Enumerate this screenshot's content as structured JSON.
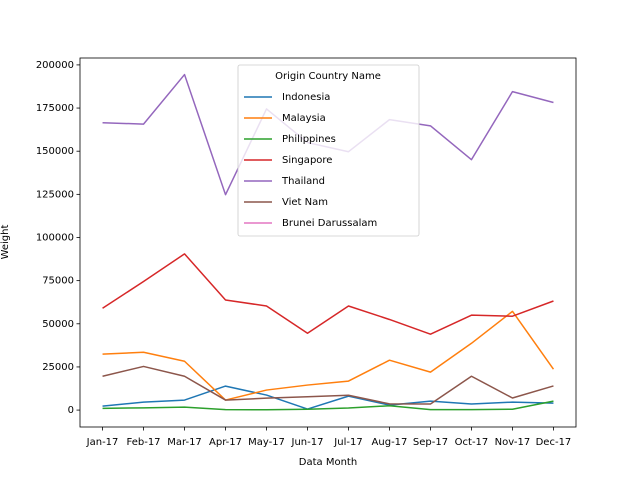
{
  "chart_data": {
    "type": "line",
    "x_label": "Data Month",
    "y_label": "Weight",
    "categories": [
      "Jan-17",
      "Feb-17",
      "Mar-17",
      "Apr-17",
      "May-17",
      "Jun-17",
      "Jul-17",
      "Aug-17",
      "Sep-17",
      "Oct-17",
      "Nov-17",
      "Dec-17"
    ],
    "series": [
      {
        "name": "Indonesia",
        "color": "#1f77b4",
        "values": [
          2300,
          4600,
          5800,
          13900,
          8700,
          600,
          8100,
          2900,
          5200,
          3500,
          4600,
          4000
        ]
      },
      {
        "name": "Malaysia",
        "color": "#ff7f0e",
        "values": [
          32400,
          33500,
          28300,
          5800,
          11600,
          14500,
          16800,
          28900,
          22000,
          38700,
          57200,
          23700
        ]
      },
      {
        "name": "Philippines",
        "color": "#2ca02c",
        "values": [
          1000,
          1300,
          1700,
          300,
          200,
          500,
          1200,
          2500,
          300,
          300,
          500,
          5200
        ]
      },
      {
        "name": "Singapore",
        "color": "#d62728",
        "values": [
          59000,
          74500,
          90500,
          63800,
          60300,
          44500,
          60300,
          52500,
          44000,
          55000,
          54400,
          63200
        ]
      },
      {
        "name": "Thailand",
        "color": "#9467bd",
        "values": [
          166500,
          165700,
          194400,
          124800,
          174500,
          155000,
          149700,
          168300,
          164700,
          145100,
          184500,
          178200
        ]
      },
      {
        "name": "Viet Nam",
        "color": "#8c564b",
        "values": [
          19600,
          25300,
          19600,
          5800,
          6900,
          7700,
          8600,
          3600,
          3500,
          19600,
          7000,
          14000
        ]
      },
      {
        "name": "Brunei Darussalam",
        "color": "#e377c2",
        "values": [
          null,
          null,
          null,
          null,
          null,
          null,
          null,
          null,
          null,
          null,
          null,
          null
        ]
      }
    ],
    "legend_title": "Origin Country Name",
    "legend": "upper center",
    "ylim": [
      -9800,
      204000
    ],
    "yticks": [
      0,
      25000,
      50000,
      75000,
      100000,
      125000,
      150000,
      175000,
      200000
    ],
    "grid": false
  }
}
